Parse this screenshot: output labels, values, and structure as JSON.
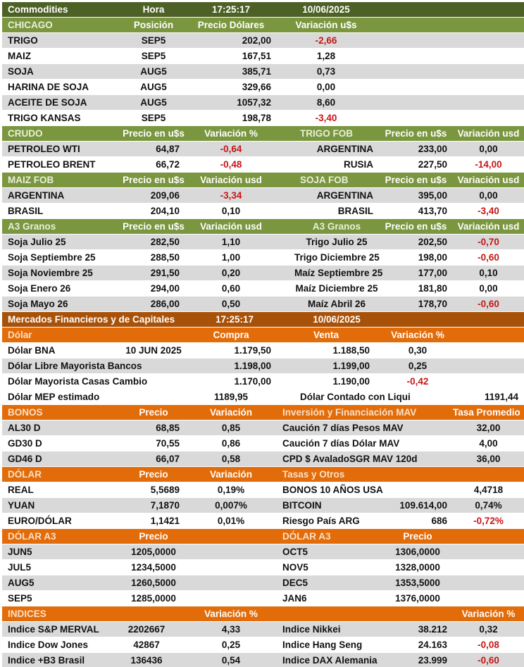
{
  "colors": {
    "dark_green": "#4D6026",
    "green": "#7A963F",
    "dark_orange": "#A85108",
    "orange": "#E36C0A",
    "row_alt_gray": "#D9D9D9",
    "negative_red": "#C81616",
    "header_text": "#FFFFFF"
  },
  "top_bar": {
    "title": "Commodities",
    "hora_label": "Hora",
    "time": "17:25:17",
    "date": "10/06/2025"
  },
  "chicago": {
    "title": "CHICAGO",
    "col_pos": "Posición",
    "col_price": "Precio Dólares",
    "col_var": "Variación u$s",
    "rows": [
      {
        "name": "TRIGO",
        "pos": "SEP5",
        "price": "202,00",
        "var": "-2,66"
      },
      {
        "name": "MAIZ",
        "pos": "SEP5",
        "price": "167,51",
        "var": "1,28"
      },
      {
        "name": "SOJA",
        "pos": "AUG5",
        "price": "385,71",
        "var": "0,73"
      },
      {
        "name": "HARINA DE SOJA",
        "pos": "AUG5",
        "price": "329,66",
        "var": "0,00"
      },
      {
        "name": "ACEITE DE SOJA",
        "pos": "AUG5",
        "price": "1057,32",
        "var": "8,60"
      },
      {
        "name": "TRIGO KANSAS",
        "pos": "SEP5",
        "price": "198,78",
        "var": "-3,40"
      }
    ]
  },
  "crudo_trigo_fob": {
    "left_title": "CRUDO",
    "left_col_price": "Precio en u$s",
    "left_col_var": "Variación %",
    "right_title": "TRIGO FOB",
    "right_col_price": "Precio en u$s",
    "right_col_var": "Variación usd",
    "rows": [
      {
        "lname": "PETROLEO WTI",
        "lprice": "64,87",
        "lvar": "-0,64",
        "rname": "ARGENTINA",
        "rprice": "233,00",
        "rvar": "0,00"
      },
      {
        "lname": "PETROLEO BRENT",
        "lprice": "66,72",
        "lvar": "-0,48",
        "rname": "RUSIA",
        "rprice": "227,50",
        "rvar": "-14,00"
      }
    ]
  },
  "maiz_soja_fob": {
    "left_title": "MAIZ FOB",
    "left_col_price": "Precio en u$s",
    "left_col_var": "Variación usd",
    "right_title": "SOJA FOB",
    "right_col_price": "Precio en u$s",
    "right_col_var": "Variación usd",
    "rows": [
      {
        "lname": "ARGENTINA",
        "lprice": "209,06",
        "lvar": "-3,34",
        "rname": "ARGENTINA",
        "rprice": "395,00",
        "rvar": "0,00"
      },
      {
        "lname": "BRASIL",
        "lprice": "204,10",
        "lvar": "0,10",
        "rname": "BRASIL",
        "rprice": "413,70",
        "rvar": "-3,40"
      }
    ]
  },
  "a3_granos": {
    "left_title": "A3 Granos",
    "left_col_price": "Precio en u$s",
    "left_col_var": "Variación usd",
    "right_title": "A3 Granos",
    "right_col_price": "Precio en u$s",
    "right_col_var": "Variación usd",
    "rows": [
      {
        "lname": "Soja Julio 25",
        "lprice": "282,50",
        "lvar": "1,10",
        "rname": "Trigo Julio 25",
        "rprice": "202,50",
        "rvar": "-0,70"
      },
      {
        "lname": "Soja Septiembre 25",
        "lprice": "288,50",
        "lvar": "1,00",
        "rname": "Trigo Diciembre 25",
        "rprice": "198,00",
        "rvar": "-0,60"
      },
      {
        "lname": "Soja Noviembre 25",
        "lprice": "291,50",
        "lvar": "0,20",
        "rname": "Maíz Septiembre 25",
        "rprice": "177,00",
        "rvar": "0,10"
      },
      {
        "lname": "Soja Enero 26",
        "lprice": "294,00",
        "lvar": "0,60",
        "rname": "Maíz Diciembre 25",
        "rprice": "181,80",
        "rvar": "0,00"
      },
      {
        "lname": "Soja Mayo 26",
        "lprice": "286,00",
        "lvar": "0,50",
        "rname": "Maíz Abril 26",
        "rprice": "178,70",
        "rvar": "-0,60"
      }
    ]
  },
  "mercados_bar": {
    "title": "Mercados Financieros y de Capitales",
    "time": "17:25:17",
    "date": "10/06/2025"
  },
  "dolar": {
    "title": "Dólar",
    "col_compra": "Compra",
    "col_venta": "Venta",
    "col_var": "Variación %",
    "rows": [
      {
        "name": "Dólar BNA",
        "date": "10 JUN 2025",
        "compra": "1.179,50",
        "venta": "1.188,50",
        "var": "0,30"
      },
      {
        "name": "Dólar Libre Mayorista Bancos",
        "date": "",
        "compra": "1.198,00",
        "venta": "1.199,00",
        "var": "0,25"
      },
      {
        "name": "Dólar Mayorista Casas Cambio",
        "date": "",
        "compra": "1.170,00",
        "venta": "1.190,00",
        "var": "-0,42"
      }
    ],
    "mep": {
      "name": "Dólar MEP estimado",
      "value": "1189,95",
      "name2": "Dólar Contado con Liqui",
      "value2": "1191,44"
    }
  },
  "bonos_mav": {
    "title": "BONOS",
    "col_price": "Precio",
    "col_var": "Variación",
    "right_title": "Inversión y Financiación MAV",
    "right_col": "Tasa Promedio",
    "rows": [
      {
        "name": "AL30 D",
        "price": "68,85",
        "var": "0,85",
        "rname": "Caución 7 días Pesos MAV",
        "tasa": "32,00"
      },
      {
        "name": "GD30 D",
        "price": "70,55",
        "var": "0,86",
        "rname": "Caución 7 días Dólar MAV",
        "tasa": "4,00"
      },
      {
        "name": "GD46 D",
        "price": "66,07",
        "var": "0,58",
        "rname": "CPD $ AvaladoSGR  MAV 120d",
        "tasa": "36,00"
      }
    ]
  },
  "dolar_tasas": {
    "title": "DÓLAR",
    "col_price": "Precio",
    "col_var": "Variación",
    "right_title": "Tasas y Otros",
    "rows": [
      {
        "lname": "REAL",
        "lprice": "5,5689",
        "lvar": "0,19%",
        "rname": "BONOS 10 AÑOS USA",
        "rvalue": "",
        "rvar": "4,4718"
      },
      {
        "lname": "YUAN",
        "lprice": "7,1870",
        "lvar": "0,007%",
        "rname": "BITCOIN",
        "rvalue": "109.614,00",
        "rvar": "0,74%"
      },
      {
        "lname": "EURO/DÓLAR",
        "lprice": "1,1421",
        "lvar": "0,01%",
        "rname": "Riesgo País ARG",
        "rvalue": "686",
        "rvar": "-0,72%"
      }
    ]
  },
  "dolar_a3": {
    "left_title": "DÓLAR A3",
    "left_col": "Precio",
    "right_title": "DÓLAR A3",
    "right_col": "Precio",
    "rows": [
      {
        "lname": "JUN5",
        "lprice": "1205,0000",
        "rname": "OCT5",
        "rprice": "1306,0000"
      },
      {
        "lname": "JUL5",
        "lprice": "1234,5000",
        "rname": "NOV5",
        "rprice": "1328,0000"
      },
      {
        "lname": "AUG5",
        "lprice": "1260,5000",
        "rname": "DEC5",
        "rprice": "1353,5000"
      },
      {
        "lname": "SEP5",
        "lprice": "1285,0000",
        "rname": "JAN6",
        "rprice": "1376,0000"
      }
    ]
  },
  "indices": {
    "title": "INDICES",
    "col_var": "Variación %",
    "right_col_var": "Variación %",
    "rows": [
      {
        "lname": "Indice S&P MERVAL",
        "lvalue": "2202667",
        "lvar": "4,33",
        "rname": "Indice Nikkei",
        "rvalue": "38.212",
        "rvar": "0,32"
      },
      {
        "lname": "Indice Dow Jones",
        "lvalue": "42867",
        "lvar": "0,25",
        "rname": "Indice Hang Seng",
        "rvalue": "24.163",
        "rvar": "-0,08"
      },
      {
        "lname": "Indice +B3 Brasil",
        "lvalue": "136436",
        "lvar": "0,54",
        "rname": "Indice DAX Alemania",
        "rvalue": "23.999",
        "rvar": "-0,60"
      }
    ]
  }
}
